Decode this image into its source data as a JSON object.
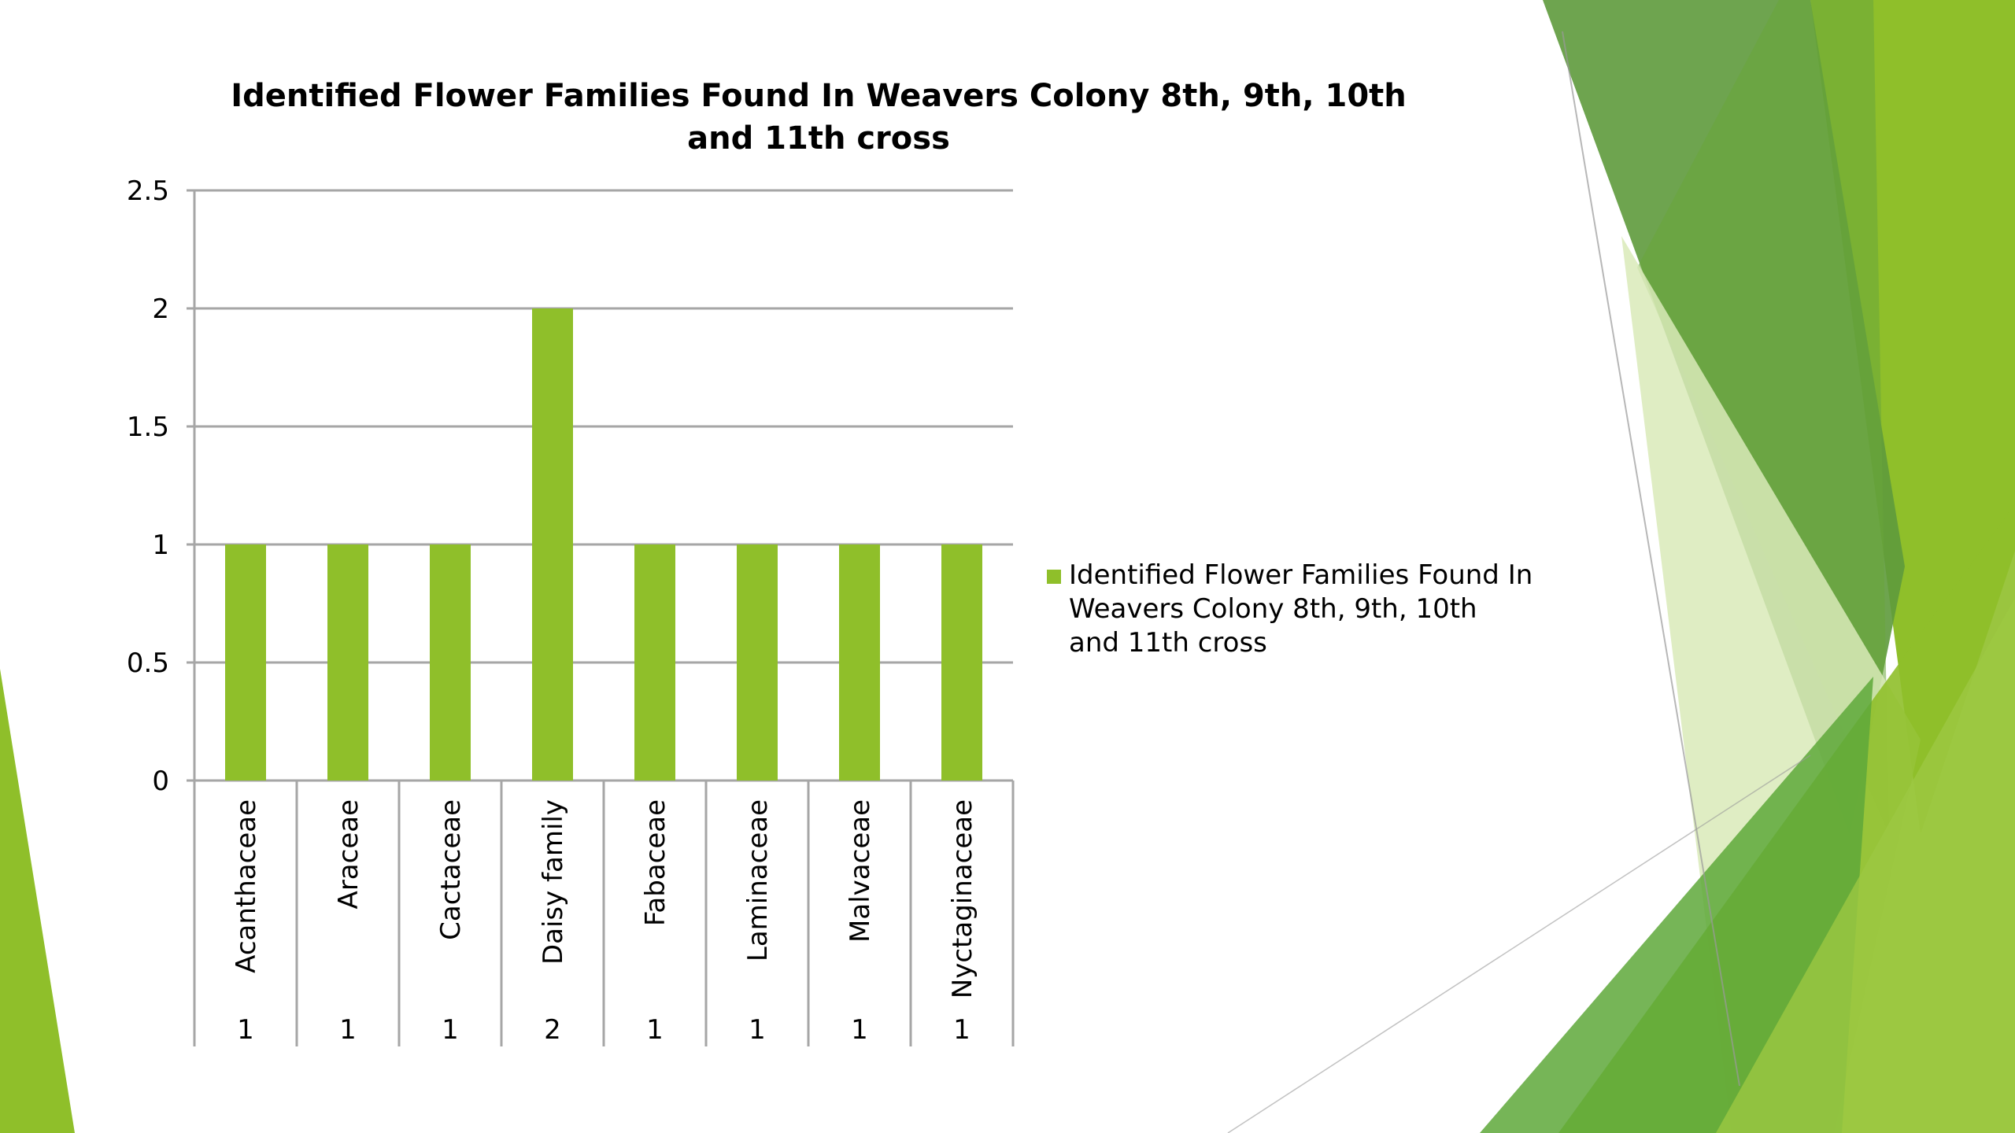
{
  "slide": {
    "colors": {
      "accent": "#8fbf2a",
      "accent_dark": "#5e9a3c",
      "accent_light": "#d9eab8",
      "grid": "#a6a6a6"
    }
  },
  "chart_data": {
    "type": "bar",
    "title": "Identified Flower Families Found In Weavers Colony  8th, 9th, 10th\nand 11th cross",
    "categories": [
      "Acanthaceae",
      "Araceae",
      "Cactaceae",
      "Daisy family",
      "Fabaceae",
      "Laminaceae",
      "Malvaceae",
      "Nyctaginaceae"
    ],
    "series": [
      {
        "name": "Identified Flower Families Found In Weavers Colony  8th, 9th, 10th and 11th cross",
        "values": [
          1,
          1,
          1,
          2,
          1,
          1,
          1,
          1
        ],
        "color": "#8fbf2a"
      }
    ],
    "y_ticks": [
      "0",
      "0.5",
      "1",
      "1.5",
      "2",
      "2.5"
    ],
    "ylim": [
      0,
      2.5
    ],
    "grid": true,
    "legend": "right",
    "data_table": true
  }
}
